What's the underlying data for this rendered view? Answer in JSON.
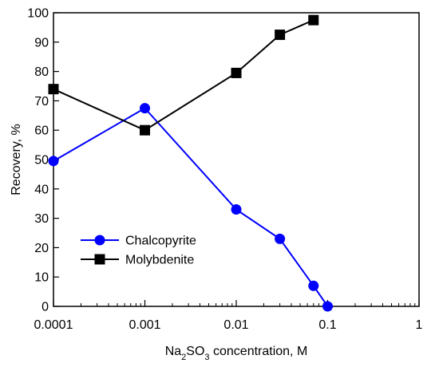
{
  "chart_data": {
    "type": "line",
    "x_scale": "log",
    "xlim": [
      0.0001,
      1
    ],
    "ylim": [
      0,
      100
    ],
    "x_ticks": [
      {
        "value": 0.0001,
        "label": "0.0001"
      },
      {
        "value": 0.001,
        "label": "0.001"
      },
      {
        "value": 0.01,
        "label": "0.01"
      },
      {
        "value": 0.1,
        "label": "0.1"
      },
      {
        "value": 1,
        "label": "1"
      }
    ],
    "y_ticks": [
      {
        "value": 0,
        "label": "0"
      },
      {
        "value": 10,
        "label": "10"
      },
      {
        "value": 20,
        "label": "20"
      },
      {
        "value": 30,
        "label": "30"
      },
      {
        "value": 40,
        "label": "40"
      },
      {
        "value": 50,
        "label": "50"
      },
      {
        "value": 60,
        "label": "60"
      },
      {
        "value": 70,
        "label": "70"
      },
      {
        "value": 80,
        "label": "80"
      },
      {
        "value": 90,
        "label": "90"
      },
      {
        "value": 100,
        "label": "100"
      }
    ],
    "xlabel": {
      "prefix": "Na",
      "sub1": "2",
      "mid": "SO",
      "sub2": "3",
      "suffix": " concentration, M"
    },
    "ylabel": "Recovery, %",
    "grid": false,
    "legend_position": "bottom-left",
    "series": [
      {
        "name": "Chalcopyrite",
        "color": "#0000ff",
        "marker": "circle",
        "points": [
          {
            "x": 0.0001,
            "y": 49.5
          },
          {
            "x": 0.001,
            "y": 67.5
          },
          {
            "x": 0.01,
            "y": 33
          },
          {
            "x": 0.03,
            "y": 23
          },
          {
            "x": 0.07,
            "y": 7
          },
          {
            "x": 0.1,
            "y": 0
          }
        ]
      },
      {
        "name": "Molybdenite",
        "color": "#000000",
        "marker": "square",
        "points": [
          {
            "x": 0.0001,
            "y": 74
          },
          {
            "x": 0.001,
            "y": 60
          },
          {
            "x": 0.01,
            "y": 79.5
          },
          {
            "x": 0.03,
            "y": 92.5
          },
          {
            "x": 0.07,
            "y": 97.5
          }
        ]
      }
    ]
  }
}
